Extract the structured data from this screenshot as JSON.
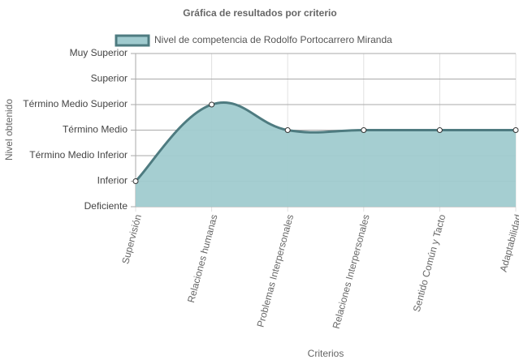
{
  "chart_data": {
    "type": "area",
    "title": "Gráfica de resultados por criterio",
    "x_label": "Criterios",
    "y_label": "Nivel obtenido",
    "categories": [
      "Supervisión",
      "Relaciones humanas",
      "Problemas Interpersonales",
      "Relaciones Interpersonales",
      "Sentido Común y Tacto",
      "Adaptabilidad"
    ],
    "series": [
      {
        "name": "Nivel de competencia de Rodolfo Portocarrero Miranda",
        "color": "#4e7b80",
        "fill": "#a0cbcf",
        "values": [
          1,
          4,
          3,
          3,
          3,
          3
        ]
      }
    ],
    "ylim": [
      0,
      6
    ],
    "yticks": [
      {
        "value": 0,
        "label": "Deficiente"
      },
      {
        "value": 1,
        "label": "Inferior"
      },
      {
        "value": 2,
        "label": "Término Medio Inferior"
      },
      {
        "value": 3,
        "label": "Término Medio"
      },
      {
        "value": 4,
        "label": "Término Medio Superior"
      },
      {
        "value": 5,
        "label": "Superior"
      },
      {
        "value": 6,
        "label": "Muy Superior"
      }
    ],
    "grid": true
  }
}
